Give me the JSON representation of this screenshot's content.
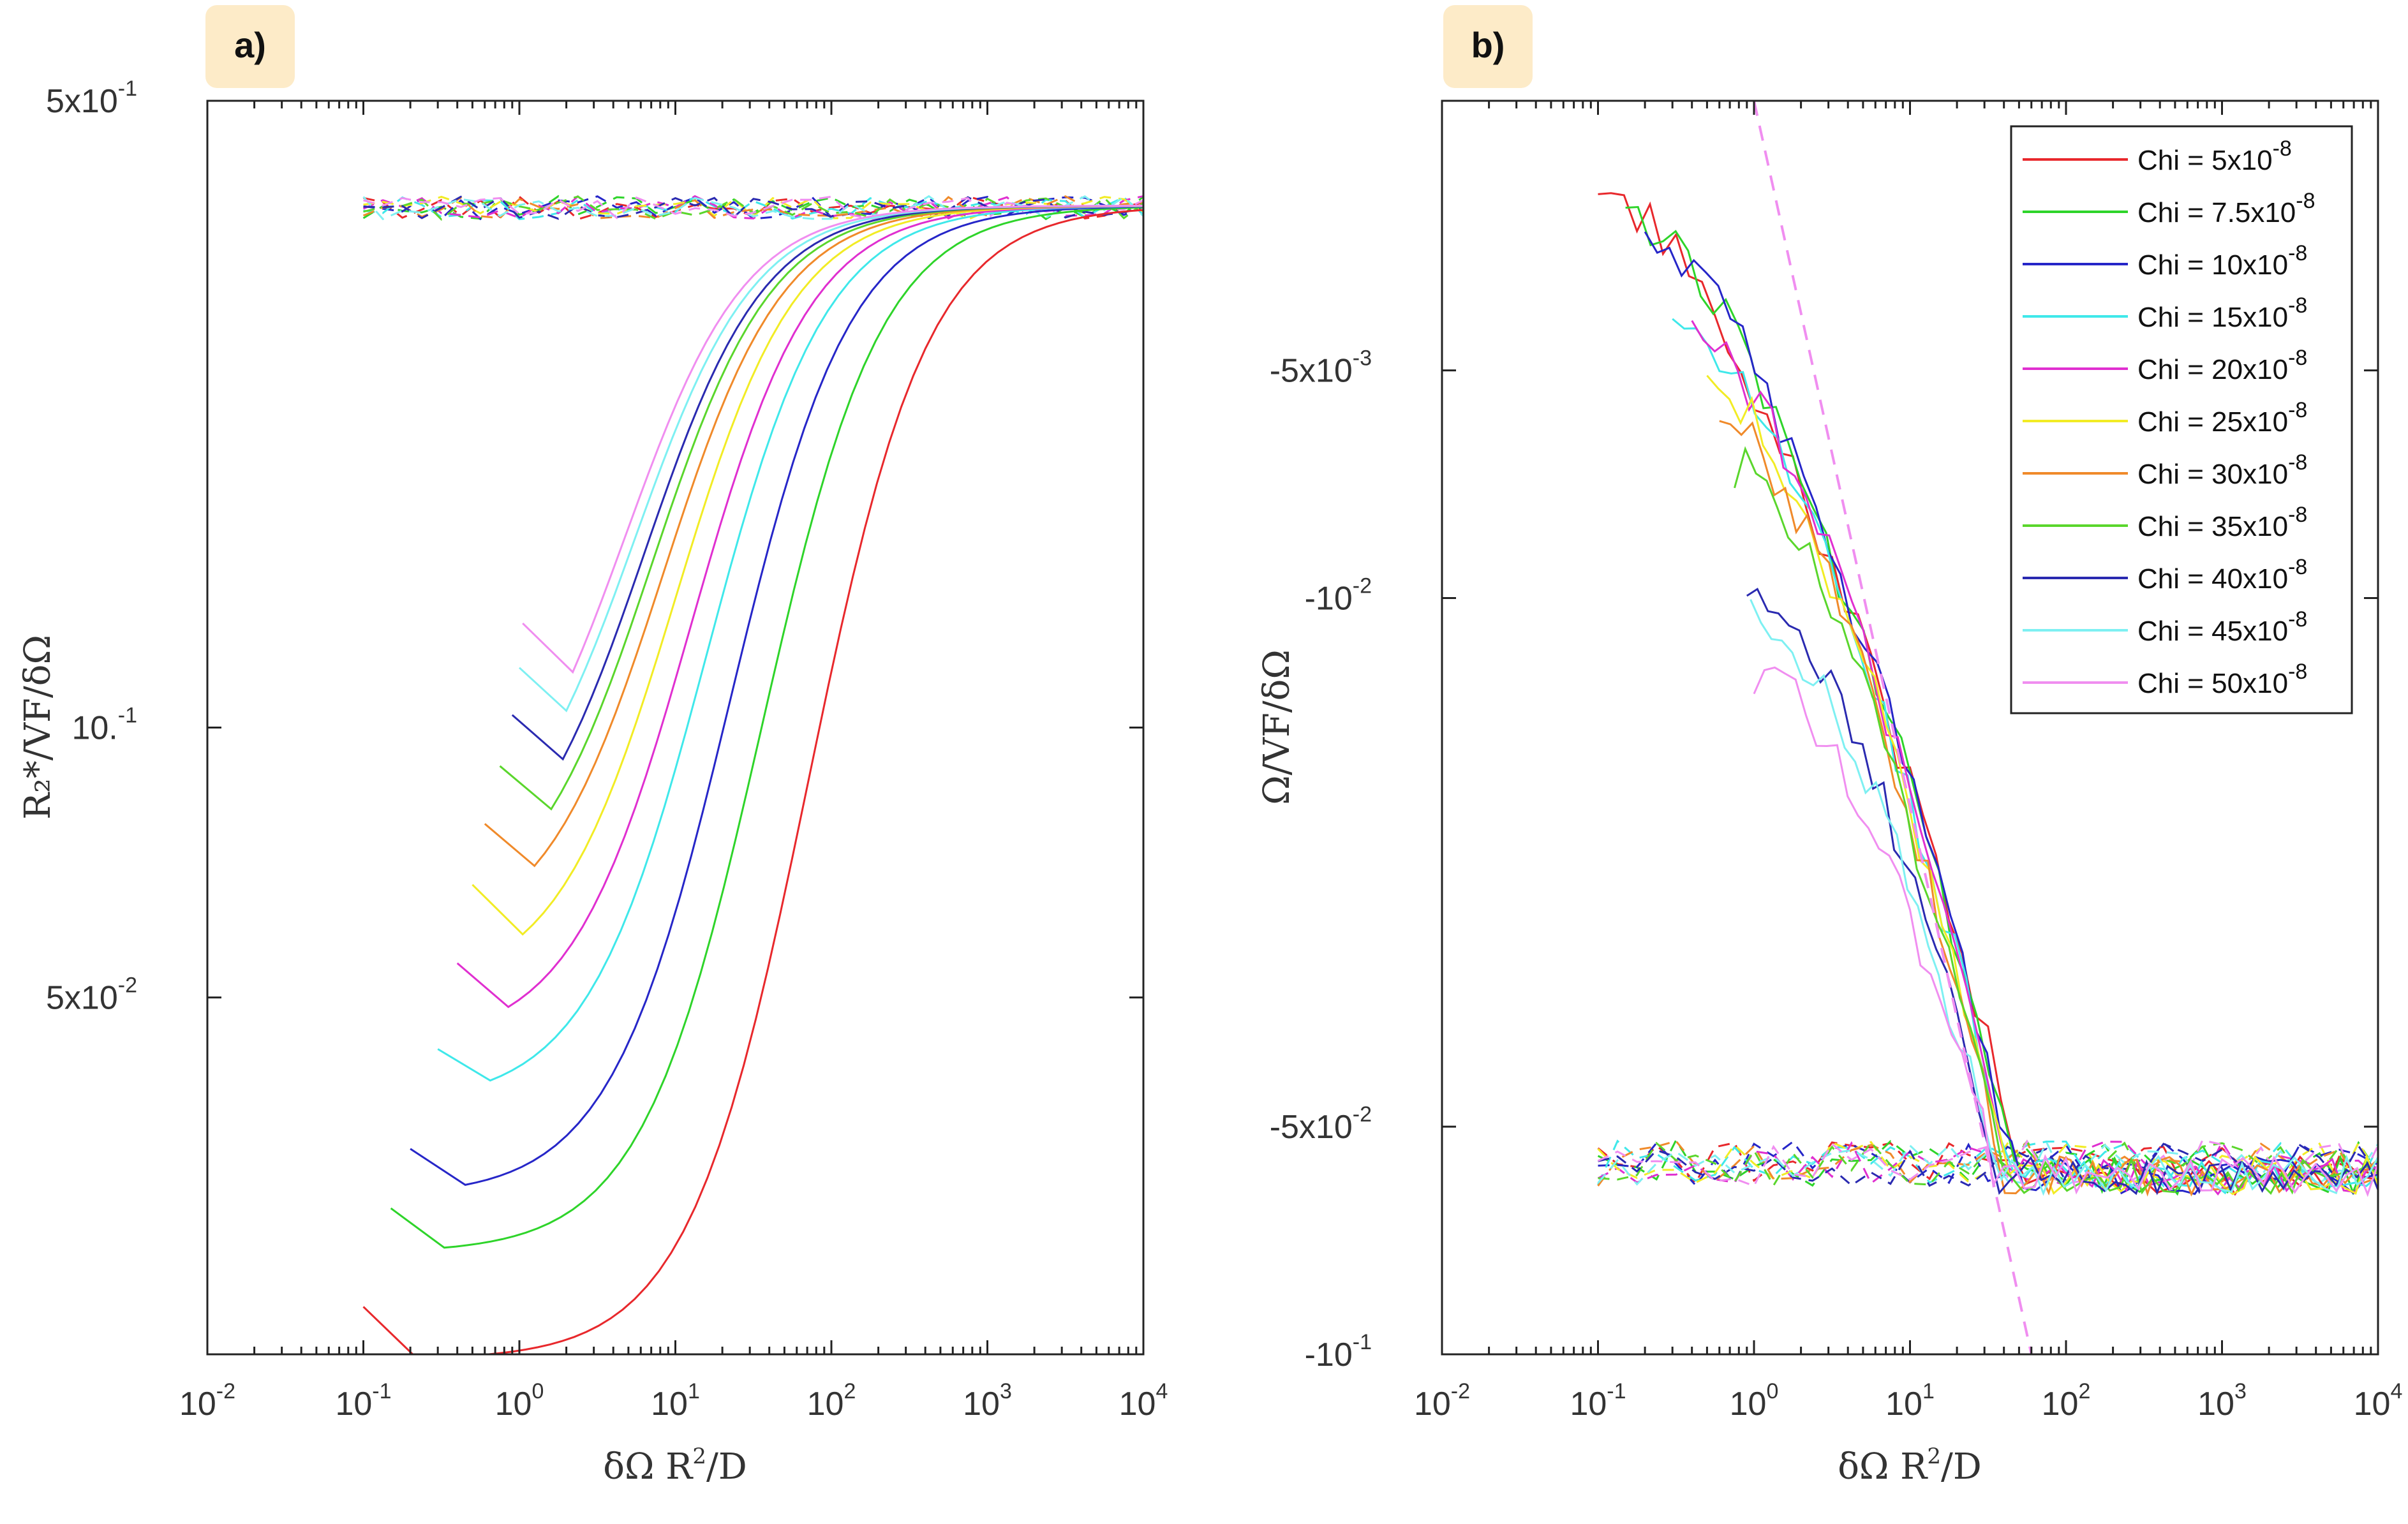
{
  "panels": {
    "a": {
      "badge": "a)",
      "xlabel_prefix": "δΩ R",
      "xlabel_exp": "2",
      "xlabel_suffix": "/D",
      "ylabel": "R₂*/VF/δΩ"
    },
    "b": {
      "badge": "b)",
      "xlabel_prefix": "δΩ R",
      "xlabel_exp": "2",
      "xlabel_suffix": "/D",
      "ylabel": "Ω/VF/δΩ"
    }
  },
  "legend": {
    "entries": [
      {
        "base": "Chi = 5x10",
        "exp": "-8",
        "color": "#e8282c"
      },
      {
        "base": "Chi = 7.5x10",
        "exp": "-8",
        "color": "#2ed42a"
      },
      {
        "base": "Chi = 10x10",
        "exp": "-8",
        "color": "#2626c8"
      },
      {
        "base": "Chi = 15x10",
        "exp": "-8",
        "color": "#3fe8ea"
      },
      {
        "base": "Chi = 20x10",
        "exp": "-8",
        "color": "#e02fd0"
      },
      {
        "base": "Chi = 25x10",
        "exp": "-8",
        "color": "#f2ec25"
      },
      {
        "base": "Chi = 30x10",
        "exp": "-8",
        "color": "#f08a2a"
      },
      {
        "base": "Chi = 35x10",
        "exp": "-8",
        "color": "#5ad62c"
      },
      {
        "base": "Chi = 40x10",
        "exp": "-8",
        "color": "#2a2ab0"
      },
      {
        "base": "Chi = 45x10",
        "exp": "-8",
        "color": "#7ef0f2"
      },
      {
        "base": "Chi = 50x10",
        "exp": "-8",
        "color": "#f08ef0"
      }
    ]
  },
  "chart_data": [
    {
      "type": "line",
      "panel": "a",
      "xscale": "log",
      "yscale": "log",
      "xlim": [
        0.01,
        10000
      ],
      "ylim": [
        0.02,
        0.5
      ],
      "xlabel": "δΩ R²/D",
      "ylabel": "R₂*/VF/δΩ",
      "xticks": [
        {
          "base": "10",
          "exp": "-2",
          "v": 0.01
        },
        {
          "base": "10",
          "exp": "-1",
          "v": 0.1
        },
        {
          "base": "10",
          "exp": "0",
          "v": 1
        },
        {
          "base": "10",
          "exp": "1",
          "v": 10
        },
        {
          "base": "10",
          "exp": "2",
          "v": 100
        },
        {
          "base": "10",
          "exp": "3",
          "v": 1000
        },
        {
          "base": "10",
          "exp": "4",
          "v": 10000
        }
      ],
      "yticks": [
        {
          "base": "5x10",
          "exp": "-1",
          "v": 0.5
        },
        {
          "base": "10.",
          "exp": "-1",
          "v": 0.1
        },
        {
          "base": "5x10",
          "exp": "-2",
          "v": 0.05
        }
      ],
      "series_solid": [
        {
          "name": "Chi = 5x10^-8",
          "start_x": 0.1,
          "start_y": 0.0226,
          "min_x": 0.22,
          "min_y": 0.0198,
          "shift": 1.85
        },
        {
          "name": "Chi = 7.5x10^-8",
          "start_x": 0.15,
          "start_y": 0.0291,
          "min_x": 0.33,
          "min_y": 0.0263,
          "shift": 1.55
        },
        {
          "name": "Chi = 10x10^-8",
          "start_x": 0.2,
          "start_y": 0.0339,
          "min_x": 0.45,
          "min_y": 0.0309,
          "shift": 1.35
        },
        {
          "name": "Chi = 15x10^-8",
          "start_x": 0.3,
          "start_y": 0.0438,
          "min_x": 0.65,
          "min_y": 0.0404,
          "shift": 1.2
        },
        {
          "name": "Chi = 20x10^-8",
          "start_x": 0.4,
          "start_y": 0.0546,
          "min_x": 0.85,
          "min_y": 0.0488,
          "shift": 1.1
        },
        {
          "name": "Chi = 25x10^-8",
          "start_x": 0.5,
          "start_y": 0.0668,
          "min_x": 1.05,
          "min_y": 0.0588,
          "shift": 1.0
        },
        {
          "name": "Chi = 30x10^-8",
          "start_x": 0.6,
          "start_y": 0.0781,
          "min_x": 1.25,
          "min_y": 0.0701,
          "shift": 0.92
        },
        {
          "name": "Chi = 35x10^-8",
          "start_x": 0.75,
          "start_y": 0.0906,
          "min_x": 1.6,
          "min_y": 0.0811,
          "shift": 0.85
        },
        {
          "name": "Chi = 40x10^-8",
          "start_x": 0.9,
          "start_y": 0.1033,
          "min_x": 1.9,
          "min_y": 0.0922,
          "shift": 0.8
        },
        {
          "name": "Chi = 45x10^-8",
          "start_x": 1.0,
          "start_y": 0.1166,
          "min_x": 2.0,
          "min_y": 0.1044,
          "shift": 0.74
        },
        {
          "name": "Chi = 50x10^-8",
          "start_x": 1.05,
          "start_y": 0.1307,
          "min_x": 2.2,
          "min_y": 0.1153,
          "shift": 0.68
        }
      ],
      "plateau": 0.382,
      "series_dashed": {
        "x_range": [
          0.1,
          10000
        ],
        "y_approx": 0.38
      }
    },
    {
      "type": "line",
      "panel": "b",
      "xscale": "log",
      "yscale": "log-negative",
      "xlim": [
        0.01,
        10000
      ],
      "ylim": [
        -0.1,
        -0.0022
      ],
      "xlabel": "δΩ R²/D",
      "ylabel": "Ω/VF/δΩ",
      "xticks": [
        {
          "base": "10",
          "exp": "-2",
          "v": 0.01
        },
        {
          "base": "10",
          "exp": "-1",
          "v": 0.1
        },
        {
          "base": "10",
          "exp": "0",
          "v": 1
        },
        {
          "base": "10",
          "exp": "1",
          "v": 10
        },
        {
          "base": "10",
          "exp": "2",
          "v": 100
        },
        {
          "base": "10",
          "exp": "3",
          "v": 1000
        },
        {
          "base": "10",
          "exp": "4",
          "v": 10000
        }
      ],
      "yticks": [
        {
          "base": "-5x10",
          "exp": "-3",
          "v": -0.005
        },
        {
          "base": "-10",
          "exp": "-2",
          "v": -0.01
        },
        {
          "base": "-5x10",
          "exp": "-2",
          "v": -0.05
        },
        {
          "base": "-10",
          "exp": "-1",
          "v": -0.1
        }
      ],
      "series_solid": [
        {
          "name": "Chi = 5x10^-8",
          "start_x": 0.1,
          "start_y": -0.0029,
          "knee_x": 55
        },
        {
          "name": "Chi = 7.5x10^-8",
          "start_x": 0.15,
          "start_y": -0.0031,
          "knee_x": 50
        },
        {
          "name": "Chi = 10x10^-8",
          "start_x": 0.2,
          "start_y": -0.0033,
          "knee_x": 47
        },
        {
          "name": "Chi = 15x10^-8",
          "start_x": 0.3,
          "start_y": -0.0042,
          "knee_x": 45
        },
        {
          "name": "Chi = 20x10^-8",
          "start_x": 0.4,
          "start_y": -0.0045,
          "knee_x": 43
        },
        {
          "name": "Chi = 25x10^-8",
          "start_x": 0.5,
          "start_y": -0.0052,
          "knee_x": 41
        },
        {
          "name": "Chi = 30x10^-8",
          "start_x": 0.6,
          "start_y": -0.0058,
          "knee_x": 40
        },
        {
          "name": "Chi = 35x10^-8",
          "start_x": 0.75,
          "start_y": -0.0067,
          "knee_x": 39
        },
        {
          "name": "Chi = 40x10^-8",
          "start_x": 0.9,
          "start_y": -0.0095,
          "knee_x": 38
        },
        {
          "name": "Chi = 45x10^-8",
          "start_x": 0.95,
          "start_y": -0.0105,
          "knee_x": 37
        },
        {
          "name": "Chi = 50x10^-8",
          "start_x": 1.0,
          "start_y": -0.0125,
          "knee_x": 36
        }
      ],
      "plateau": -0.058,
      "series_dashed": {
        "x_range": [
          0.1,
          10000
        ],
        "y_approx": -0.056
      },
      "reference_line": {
        "x": [
          1.0,
          60
        ],
        "y": [
          -0.0022,
          -0.1
        ],
        "color": "#f08ef0",
        "style": "dashed"
      }
    }
  ]
}
